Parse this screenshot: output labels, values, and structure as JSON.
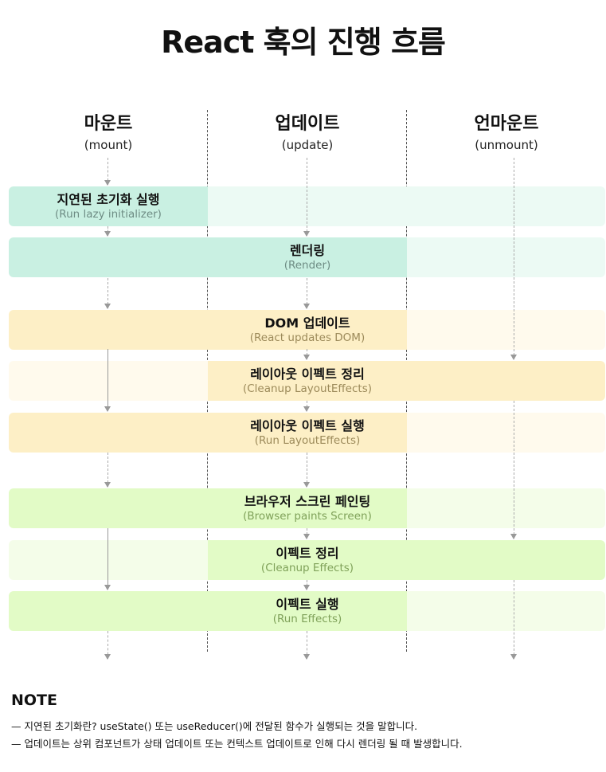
{
  "title": "React 훅의 진행 흐름",
  "columns": [
    {
      "ko": "마운트",
      "en": "(mount)"
    },
    {
      "ko": "업데이트",
      "en": "(update)"
    },
    {
      "ko": "언마운트",
      "en": "(unmount)"
    }
  ],
  "steps": [
    {
      "ko": "지연된 초기화 실행",
      "en": "(Run lazy initializer)"
    },
    {
      "ko": "렌더링",
      "en": "(Render)"
    },
    {
      "ko": "DOM 업데이트",
      "en": "(React updates DOM)"
    },
    {
      "ko": "레이아웃 이펙트 정리",
      "en": "(Cleanup LayoutEffects)"
    },
    {
      "ko": "레이아웃 이펙트 실행",
      "en": "(Run LayoutEffects)"
    },
    {
      "ko": "브라우저 스크린 페인팅",
      "en": "(Browser paints Screen)"
    },
    {
      "ko": "이펙트 정리",
      "en": "(Cleanup Effects)"
    },
    {
      "ko": "이펙트 실행",
      "en": "(Run Effects)"
    }
  ],
  "colors": {
    "green_dark": "#c9f0e2",
    "green_light": "#ecfaf4",
    "green_text": "#6e8c84",
    "yellow_dark": "#fdefc6",
    "yellow_light": "#fffaed",
    "yellow_text": "#9c8a5a",
    "lime_dark": "#e2fbc6",
    "lime_light": "#f4fde9",
    "lime_text": "#7fa159"
  },
  "note": {
    "title": "NOTE",
    "lines": [
      "— 지연된 초기화란? useState() 또는 useReducer()에 전달된 함수가 실행되는 것을 말합니다.",
      "— 업데이트는 상위 컴포넌트가 상태 업데이트 또는 컨텍스트 업데이트로 인해 다시 렌더링 될 때 발생합니다."
    ]
  }
}
